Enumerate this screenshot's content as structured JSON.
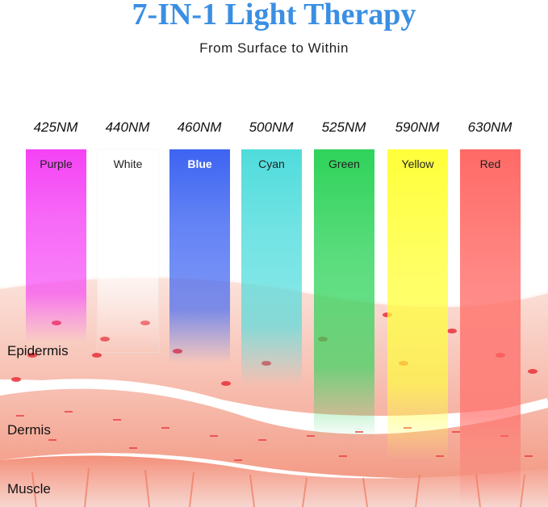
{
  "title": "7-IN-1 Light Therapy",
  "subtitle": "From Surface to Within",
  "lights": [
    {
      "wavelength": "425NM",
      "name": "Purple",
      "color": "#f542f5",
      "depth": 0.25
    },
    {
      "wavelength": "440NM",
      "name": "White",
      "color": "#ffffff",
      "depth": 0.3
    },
    {
      "wavelength": "460NM",
      "name": "Blue",
      "color": "#3d64f2",
      "depth": 0.35
    },
    {
      "wavelength": "500NM",
      "name": "Cyan",
      "color": "#4fdcdc",
      "depth": 0.45
    },
    {
      "wavelength": "525NM",
      "name": "Green",
      "color": "#2fd35a",
      "depth": 0.7
    },
    {
      "wavelength": "590NM",
      "name": "Yellow",
      "color": "#ffff3a",
      "depth": 0.8
    },
    {
      "wavelength": "630NM",
      "name": "Red",
      "color": "#ff6a66",
      "depth": 1.0
    }
  ],
  "layers": {
    "epidermis": "Epidermis",
    "dermis": "Dermis",
    "muscle": "Muscle"
  }
}
